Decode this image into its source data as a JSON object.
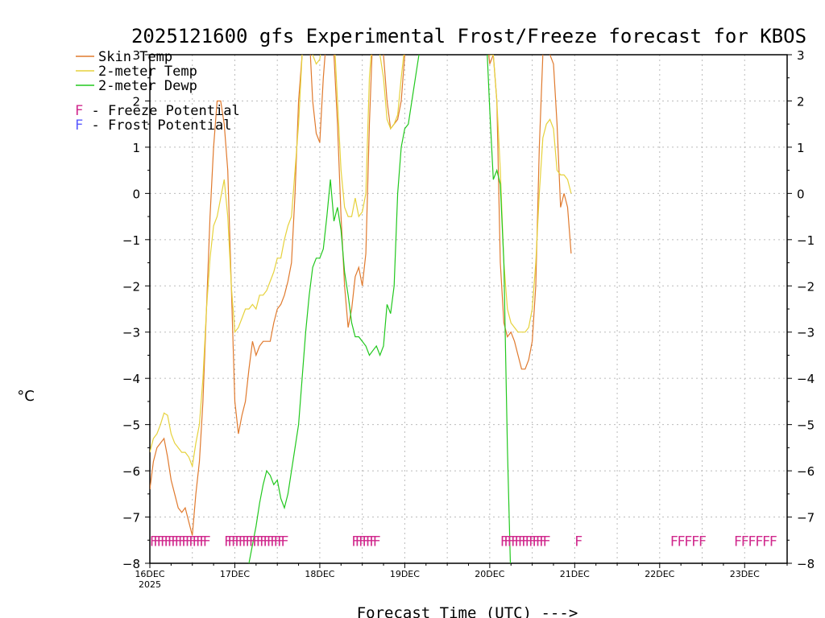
{
  "chart_data": {
    "type": "line",
    "title": "2025121600 gfs Experimental Frost/Freeze forecast for KBOS",
    "xlabel": "Forecast Time (UTC) --->",
    "ylabel": "°C",
    "xlim_hours": [
      0,
      180
    ],
    "ylim": [
      -8,
      3
    ],
    "yticks": [
      -8,
      -7,
      -6,
      -5,
      -4,
      -3,
      -2,
      -1,
      0,
      1,
      2,
      3
    ],
    "x_ticks": [
      {
        "hour": 0,
        "label": "16DEC",
        "sublabel": "2025"
      },
      {
        "hour": 24,
        "label": "17DEC"
      },
      {
        "hour": 48,
        "label": "18DEC"
      },
      {
        "hour": 72,
        "label": "19DEC"
      },
      {
        "hour": 96,
        "label": "20DEC"
      },
      {
        "hour": 120,
        "label": "21DEC"
      },
      {
        "hour": 144,
        "label": "22DEC"
      },
      {
        "hour": 168,
        "label": "23DEC"
      }
    ],
    "grid": true,
    "legend": [
      {
        "label": "Skin Temp",
        "color": "#e07a2e"
      },
      {
        "label": "2-meter Temp",
        "color": "#e6d23c"
      },
      {
        "label": "2-meter Dewp",
        "color": "#22c81e"
      }
    ],
    "potential_legend": [
      {
        "letter": "F",
        "text": " - Freeze Potential",
        "color": "#d0288c"
      },
      {
        "letter": "F",
        "text": " - Frost Potential",
        "color": "#5a5aff"
      }
    ],
    "series": [
      {
        "name": "Skin Temp",
        "color": "#e07a2e",
        "points": [
          [
            0,
            -6.4
          ],
          [
            1,
            -5.8
          ],
          [
            2,
            -5.5
          ],
          [
            3,
            -5.4
          ],
          [
            4,
            -5.3
          ],
          [
            5,
            -5.7
          ],
          [
            6,
            -6.2
          ],
          [
            7,
            -6.5
          ],
          [
            8,
            -6.8
          ],
          [
            9,
            -6.9
          ],
          [
            10,
            -6.8
          ],
          [
            11,
            -7.1
          ],
          [
            12,
            -7.4
          ],
          [
            13,
            -6.5
          ],
          [
            14,
            -5.8
          ],
          [
            15,
            -4.5
          ],
          [
            16,
            -2.5
          ],
          [
            17,
            -0.5
          ],
          [
            18,
            1
          ],
          [
            19,
            2
          ],
          [
            20,
            2
          ],
          [
            21,
            1.5
          ],
          [
            22,
            0.5
          ],
          [
            23,
            -2
          ],
          [
            24,
            -4.5
          ],
          [
            25,
            -5.2
          ],
          [
            26,
            -4.8
          ],
          [
            27,
            -4.5
          ],
          [
            28,
            -3.8
          ],
          [
            29,
            -3.2
          ],
          [
            30,
            -3.5
          ],
          [
            31,
            -3.3
          ],
          [
            32,
            -3.2
          ],
          [
            33,
            -3.2
          ],
          [
            34,
            -3.2
          ],
          [
            35,
            -2.8
          ],
          [
            36,
            -2.5
          ],
          [
            37,
            -2.4
          ],
          [
            38,
            -2.2
          ],
          [
            39,
            -1.9
          ],
          [
            40,
            -1.5
          ],
          [
            41,
            0
          ],
          [
            42,
            2
          ],
          [
            43,
            3
          ],
          [
            44,
            3.5
          ],
          [
            45,
            3.5
          ],
          [
            46,
            2
          ],
          [
            47,
            1.3
          ],
          [
            48,
            1.1
          ],
          [
            49,
            2.5
          ],
          [
            50,
            3.5
          ],
          [
            51,
            3.5
          ],
          [
            52,
            3
          ],
          [
            53,
            1.5
          ],
          [
            54,
            -0.5
          ],
          [
            55,
            -2
          ],
          [
            56,
            -2.9
          ],
          [
            57,
            -2.5
          ],
          [
            58,
            -1.8
          ],
          [
            59,
            -1.6
          ],
          [
            60,
            -2
          ],
          [
            61,
            -1.3
          ],
          [
            62,
            1.5
          ],
          [
            63,
            3.5
          ],
          [
            64,
            3.5
          ],
          [
            65,
            3.5
          ],
          [
            66,
            3
          ],
          [
            67,
            2
          ],
          [
            68,
            1.4
          ],
          [
            69,
            1.5
          ],
          [
            70,
            1.6
          ],
          [
            71,
            2
          ],
          [
            72,
            3
          ],
          [
            73,
            3.5
          ],
          [
            95,
            3.5
          ],
          [
            96,
            2.8
          ],
          [
            97,
            3
          ],
          [
            98,
            2
          ],
          [
            99,
            -1.5
          ],
          [
            100,
            -2.8
          ],
          [
            101,
            -3.1
          ],
          [
            102,
            -3
          ],
          [
            103,
            -3.2
          ],
          [
            104,
            -3.5
          ],
          [
            105,
            -3.8
          ],
          [
            106,
            -3.8
          ],
          [
            107,
            -3.6
          ],
          [
            108,
            -3.2
          ],
          [
            109,
            -2
          ],
          [
            110,
            1
          ],
          [
            111,
            3
          ],
          [
            112,
            3.5
          ],
          [
            113,
            3
          ],
          [
            114,
            2.8
          ],
          [
            115,
            1.5
          ],
          [
            116,
            -0.3
          ],
          [
            117,
            0
          ],
          [
            118,
            -0.3
          ],
          [
            119,
            -1.3
          ]
        ]
      },
      {
        "name": "2-meter Temp",
        "color": "#e6d23c",
        "points": [
          [
            0,
            -5.6
          ],
          [
            1,
            -5.3
          ],
          [
            2,
            -5.2
          ],
          [
            3,
            -5
          ],
          [
            4,
            -4.75
          ],
          [
            5,
            -4.8
          ],
          [
            6,
            -5.2
          ],
          [
            7,
            -5.4
          ],
          [
            8,
            -5.5
          ],
          [
            9,
            -5.6
          ],
          [
            10,
            -5.6
          ],
          [
            11,
            -5.7
          ],
          [
            12,
            -5.9
          ],
          [
            13,
            -5.4
          ],
          [
            14,
            -5
          ],
          [
            15,
            -4
          ],
          [
            16,
            -2.5
          ],
          [
            17,
            -1.4
          ],
          [
            18,
            -0.7
          ],
          [
            19,
            -0.5
          ],
          [
            20,
            -0.1
          ],
          [
            21,
            0.3
          ],
          [
            22,
            -0.5
          ],
          [
            23,
            -2
          ],
          [
            24,
            -3
          ],
          [
            25,
            -2.9
          ],
          [
            26,
            -2.7
          ],
          [
            27,
            -2.5
          ],
          [
            28,
            -2.5
          ],
          [
            29,
            -2.4
          ],
          [
            30,
            -2.5
          ],
          [
            31,
            -2.2
          ],
          [
            32,
            -2.2
          ],
          [
            33,
            -2.1
          ],
          [
            34,
            -1.9
          ],
          [
            35,
            -1.7
          ],
          [
            36,
            -1.4
          ],
          [
            37,
            -1.4
          ],
          [
            38,
            -1
          ],
          [
            39,
            -0.7
          ],
          [
            40,
            -0.5
          ],
          [
            41,
            0.5
          ],
          [
            42,
            1.5
          ],
          [
            43,
            3
          ],
          [
            44,
            3.5
          ],
          [
            45,
            3.5
          ],
          [
            46,
            3
          ],
          [
            47,
            2.8
          ],
          [
            48,
            2.9
          ],
          [
            49,
            3.5
          ],
          [
            50,
            3.5
          ],
          [
            51,
            3.5
          ],
          [
            52,
            3.5
          ],
          [
            53,
            2
          ],
          [
            54,
            0.5
          ],
          [
            55,
            -0.3
          ],
          [
            56,
            -0.5
          ],
          [
            57,
            -0.5
          ],
          [
            58,
            -0.1
          ],
          [
            59,
            -0.5
          ],
          [
            60,
            -0.4
          ],
          [
            61,
            0
          ],
          [
            62,
            2.5
          ],
          [
            63,
            3.5
          ],
          [
            64,
            3.5
          ],
          [
            65,
            3
          ],
          [
            66,
            2.5
          ],
          [
            67,
            1.6
          ],
          [
            68,
            1.4
          ],
          [
            69,
            1.5
          ],
          [
            70,
            1.7
          ],
          [
            71,
            2.5
          ],
          [
            72,
            3.2
          ],
          [
            73,
            3.5
          ],
          [
            95,
            3.5
          ],
          [
            96,
            3
          ],
          [
            97,
            3
          ],
          [
            98,
            2
          ],
          [
            99,
            0.5
          ],
          [
            100,
            -1.5
          ],
          [
            101,
            -2.5
          ],
          [
            102,
            -2.8
          ],
          [
            103,
            -2.9
          ],
          [
            104,
            -3
          ],
          [
            105,
            -3
          ],
          [
            106,
            -3
          ],
          [
            107,
            -2.9
          ],
          [
            108,
            -2.5
          ],
          [
            109,
            -1.5
          ],
          [
            110,
            0
          ],
          [
            111,
            1.2
          ],
          [
            112,
            1.5
          ],
          [
            113,
            1.6
          ],
          [
            114,
            1.4
          ],
          [
            115,
            0.5
          ],
          [
            116,
            0.4
          ],
          [
            117,
            0.4
          ],
          [
            118,
            0.3
          ],
          [
            119,
            0
          ]
        ]
      },
      {
        "name": "2-meter Dewp",
        "color": "#22c81e",
        "points": [
          [
            27,
            -8.5
          ],
          [
            28,
            -8
          ],
          [
            29,
            -7.6
          ],
          [
            30,
            -7.2
          ],
          [
            31,
            -6.7
          ],
          [
            32,
            -6.3
          ],
          [
            33,
            -6
          ],
          [
            34,
            -6.1
          ],
          [
            35,
            -6.3
          ],
          [
            36,
            -6.2
          ],
          [
            37,
            -6.6
          ],
          [
            38,
            -6.8
          ],
          [
            39,
            -6.5
          ],
          [
            40,
            -6
          ],
          [
            41,
            -5.5
          ],
          [
            42,
            -5
          ],
          [
            43,
            -4
          ],
          [
            44,
            -3
          ],
          [
            45,
            -2.2
          ],
          [
            46,
            -1.6
          ],
          [
            47,
            -1.4
          ],
          [
            48,
            -1.4
          ],
          [
            49,
            -1.2
          ],
          [
            50,
            -0.5
          ],
          [
            51,
            0.3
          ],
          [
            52,
            -0.6
          ],
          [
            53,
            -0.3
          ],
          [
            54,
            -0.8
          ],
          [
            55,
            -1.7
          ],
          [
            56,
            -2.2
          ],
          [
            57,
            -2.8
          ],
          [
            58,
            -3.1
          ],
          [
            59,
            -3.1
          ],
          [
            60,
            -3.2
          ],
          [
            61,
            -3.3
          ],
          [
            62,
            -3.5
          ],
          [
            63,
            -3.4
          ],
          [
            64,
            -3.3
          ],
          [
            65,
            -3.5
          ],
          [
            66,
            -3.3
          ],
          [
            67,
            -2.4
          ],
          [
            68,
            -2.6
          ],
          [
            69,
            -2
          ],
          [
            70,
            0
          ],
          [
            71,
            1
          ],
          [
            72,
            1.4
          ],
          [
            73,
            1.5
          ],
          [
            74,
            2
          ],
          [
            75,
            2.5
          ],
          [
            76,
            3
          ],
          [
            77,
            3.5
          ],
          [
            95,
            3.5
          ],
          [
            96,
            1.8
          ],
          [
            97,
            0.3
          ],
          [
            98,
            0.5
          ],
          [
            99,
            0.2
          ],
          [
            100,
            -1.5
          ],
          [
            101,
            -5.5
          ],
          [
            102,
            -8.5
          ]
        ]
      }
    ],
    "marker_rows": [
      {
        "label": "F",
        "color": "#d0288c",
        "value": -7.5,
        "hours": [
          0,
          1,
          2,
          3,
          4,
          5,
          6,
          7,
          8,
          9,
          10,
          11,
          12,
          13,
          14,
          15,
          21,
          22,
          23,
          24,
          25,
          26,
          27,
          28,
          29,
          30,
          31,
          32,
          33,
          34,
          35,
          36,
          37,
          57,
          58,
          59,
          60,
          61,
          62,
          63,
          99,
          100,
          101,
          102,
          103,
          104,
          105,
          106,
          107,
          108,
          109,
          110,
          111,
          120,
          147,
          149,
          151,
          153,
          155,
          165,
          167,
          169,
          171,
          173,
          175
        ]
      }
    ]
  }
}
